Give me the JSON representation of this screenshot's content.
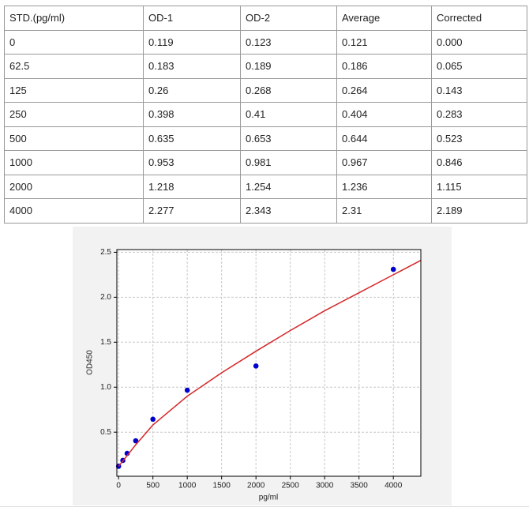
{
  "table": {
    "header": [
      "STD.(pg/ml)",
      "OD-1",
      "OD-2",
      "Average",
      "Corrected"
    ],
    "rows": [
      [
        "0",
        "0.119",
        "0.123",
        "0.121",
        "0.000"
      ],
      [
        "62.5",
        "0.183",
        "0.189",
        "0.186",
        "0.065"
      ],
      [
        "125",
        "0.26",
        "0.268",
        "0.264",
        "0.143"
      ],
      [
        "250",
        "0.398",
        "0.41",
        "0.404",
        "0.283"
      ],
      [
        "500",
        "0.635",
        "0.653",
        "0.644",
        "0.523"
      ],
      [
        "1000",
        "0.953",
        "0.981",
        "0.967",
        "0.846"
      ],
      [
        "2000",
        "1.218",
        "1.254",
        "1.236",
        "1.115"
      ],
      [
        "4000",
        "2.277",
        "2.343",
        "2.31",
        "2.189"
      ]
    ]
  },
  "chart_data": {
    "type": "scatter",
    "x_label": "pg/ml",
    "y_label": "OD450",
    "xlim": [
      -25,
      4400
    ],
    "ylim": [
      0.01,
      2.53
    ],
    "xticks": [
      0,
      500,
      1000,
      1500,
      2000,
      2500,
      3000,
      3500,
      4000
    ],
    "yticks": [
      0.5,
      {
        "value": 1,
        "label": "1.0"
      },
      1.5,
      {
        "value": 2,
        "label": "2.0"
      },
      2.5
    ],
    "grid": true,
    "series": [
      {
        "color": "#0000cc",
        "mode": "markers",
        "x": [
          0,
          62.5,
          125,
          250,
          500,
          1000,
          2000,
          4000
        ],
        "values": [
          0.121,
          0.186,
          0.264,
          0.404,
          0.644,
          0.967,
          1.236,
          2.31
        ]
      },
      {
        "color": "#d62728",
        "mode": "line",
        "x": [
          0,
          62.5,
          125,
          250,
          500,
          1000,
          1500,
          2000,
          2500,
          3000,
          3500,
          4000,
          4400
        ],
        "values": [
          0.12,
          0.18,
          0.24,
          0.36,
          0.58,
          0.9,
          1.16,
          1.4,
          1.63,
          1.85,
          2.05,
          2.25,
          2.41
        ]
      }
    ]
  }
}
